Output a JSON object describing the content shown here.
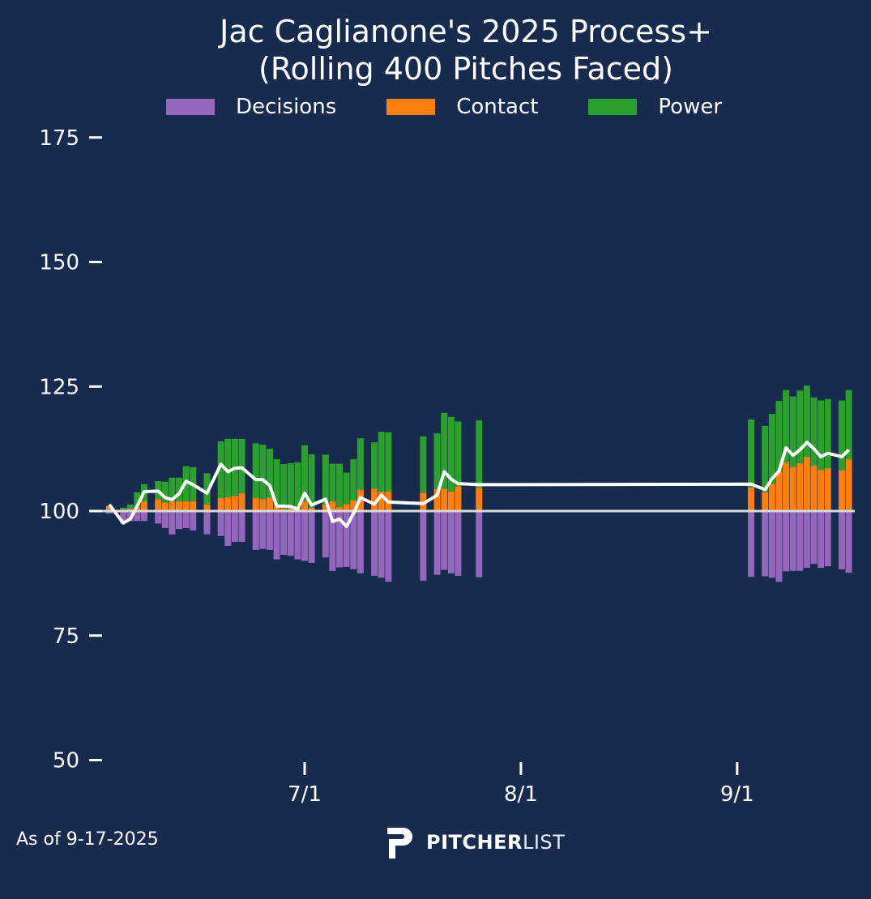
{
  "colors": {
    "background": "#172b4f",
    "decisions": "#9467bd",
    "contact": "#ff7f0e",
    "power": "#2ca02c",
    "line": "#ffffff",
    "baseline": "#d9d9d9"
  },
  "chart_data": {
    "type": "bar",
    "title_line1": "Jac Caglianone's 2025 Process+",
    "title_line2": "(Rolling 400 Pitches Faced)",
    "legend": [
      "Decisions",
      "Contact",
      "Power"
    ],
    "legend_placement": "top-center",
    "ylim": [
      50,
      175
    ],
    "yticks": [
      50,
      75,
      100,
      125,
      150,
      175
    ],
    "xticks": [
      "7/1",
      "8/1",
      "9/1"
    ],
    "baseline": 100,
    "year": 2025,
    "note": "Bars: Decisions and Contact drawn from 100; Power stacked above Contact by (Power-100). Line = Process+.",
    "dates": [
      "6/3",
      "6/5",
      "6/6",
      "6/7",
      "6/8",
      "6/10",
      "6/11",
      "6/12",
      "6/13",
      "6/14",
      "6/15",
      "6/17",
      "6/19",
      "6/20",
      "6/21",
      "6/22",
      "6/24",
      "6/25",
      "6/26",
      "6/27",
      "6/28",
      "6/29",
      "6/30",
      "7/1",
      "7/2",
      "7/4",
      "7/5",
      "7/6",
      "7/7",
      "7/8",
      "7/9",
      "7/11",
      "7/12",
      "7/13",
      "7/18",
      "7/20",
      "7/21",
      "7/22",
      "7/23",
      "7/26",
      "9/3",
      "9/5",
      "9/6",
      "9/7",
      "9/8",
      "9/9",
      "9/10",
      "9/11",
      "9/12",
      "9/13",
      "9/14",
      "9/16",
      "9/17"
    ],
    "series": [
      {
        "name": "Decisions",
        "values": [
          99.5,
          97.5,
          98,
          98,
          98,
          97.5,
          96.6,
          95.3,
          96.4,
          96.6,
          96.1,
          95.3,
          95,
          93,
          93.8,
          93.8,
          92.2,
          92.4,
          92.2,
          90.3,
          91.2,
          91,
          90.3,
          90,
          89.6,
          90.7,
          88,
          88.7,
          88.8,
          88.3,
          87.5,
          87,
          86.6,
          85.8,
          86,
          87.2,
          88.2,
          87.5,
          87,
          86.7,
          86.8,
          86.9,
          86.6,
          85.8,
          87.9,
          88,
          88,
          88.6,
          89.4,
          88.6,
          88.9,
          88.3,
          87.6
        ]
      },
      {
        "name": "Contact",
        "values": [
          101,
          100.3,
          100.5,
          100.8,
          102,
          102.4,
          101.7,
          102,
          102,
          102,
          102,
          101.3,
          102.6,
          102.8,
          103.1,
          103.6,
          102.6,
          102.4,
          102.6,
          100.8,
          100.5,
          100.5,
          100.5,
          102,
          100.7,
          101.3,
          102,
          100.8,
          101.4,
          102.2,
          104.3,
          104.5,
          103.9,
          103.9,
          103.7,
          104.4,
          104.5,
          103.9,
          105,
          104.7,
          104.7,
          103.8,
          105.5,
          108,
          109.8,
          108.9,
          109.6,
          110.9,
          109.1,
          108.3,
          108.6,
          108.2,
          110.4
        ]
      },
      {
        "name": "Power",
        "values": [
          100,
          100.4,
          100.8,
          103,
          103.4,
          103.6,
          104.2,
          104.7,
          104.7,
          107,
          106.8,
          106.3,
          111.4,
          111.7,
          111.4,
          110.9,
          111,
          110.9,
          109.9,
          109.6,
          108.9,
          109.1,
          109.3,
          111.2,
          110.7,
          110,
          107.5,
          108.7,
          106.3,
          108.2,
          110.3,
          109.3,
          112,
          111.9,
          111.3,
          111.2,
          115.2,
          115,
          113,
          113.5,
          113.7,
          113.3,
          114,
          114.1,
          114.5,
          114.1,
          114.6,
          114.3,
          113.7,
          113.9,
          113.9,
          114,
          113.9
        ]
      },
      {
        "name": "Process+",
        "values": [
          101.3,
          97.6,
          98.4,
          101,
          103.9,
          104,
          102.7,
          102.3,
          103.5,
          106,
          105.3,
          103.6,
          109.4,
          107.9,
          108.6,
          108.7,
          106.3,
          106.3,
          105.1,
          101,
          101,
          100.9,
          100.4,
          103.6,
          101.2,
          102.4,
          97.9,
          98.4,
          96.9,
          99.5,
          102.7,
          101.4,
          103.2,
          101.8,
          101.5,
          103.2,
          107.9,
          106.4,
          105.5,
          105.3,
          105.4,
          104.3,
          106.5,
          108,
          112.7,
          111.2,
          112.3,
          113.8,
          112.5,
          110.9,
          111.6,
          110.9,
          112.3
        ]
      }
    ]
  },
  "footer": {
    "as_of": "As of 9-17-2025"
  },
  "logo": {
    "bold": "PITCHER",
    "light": "LIST"
  }
}
